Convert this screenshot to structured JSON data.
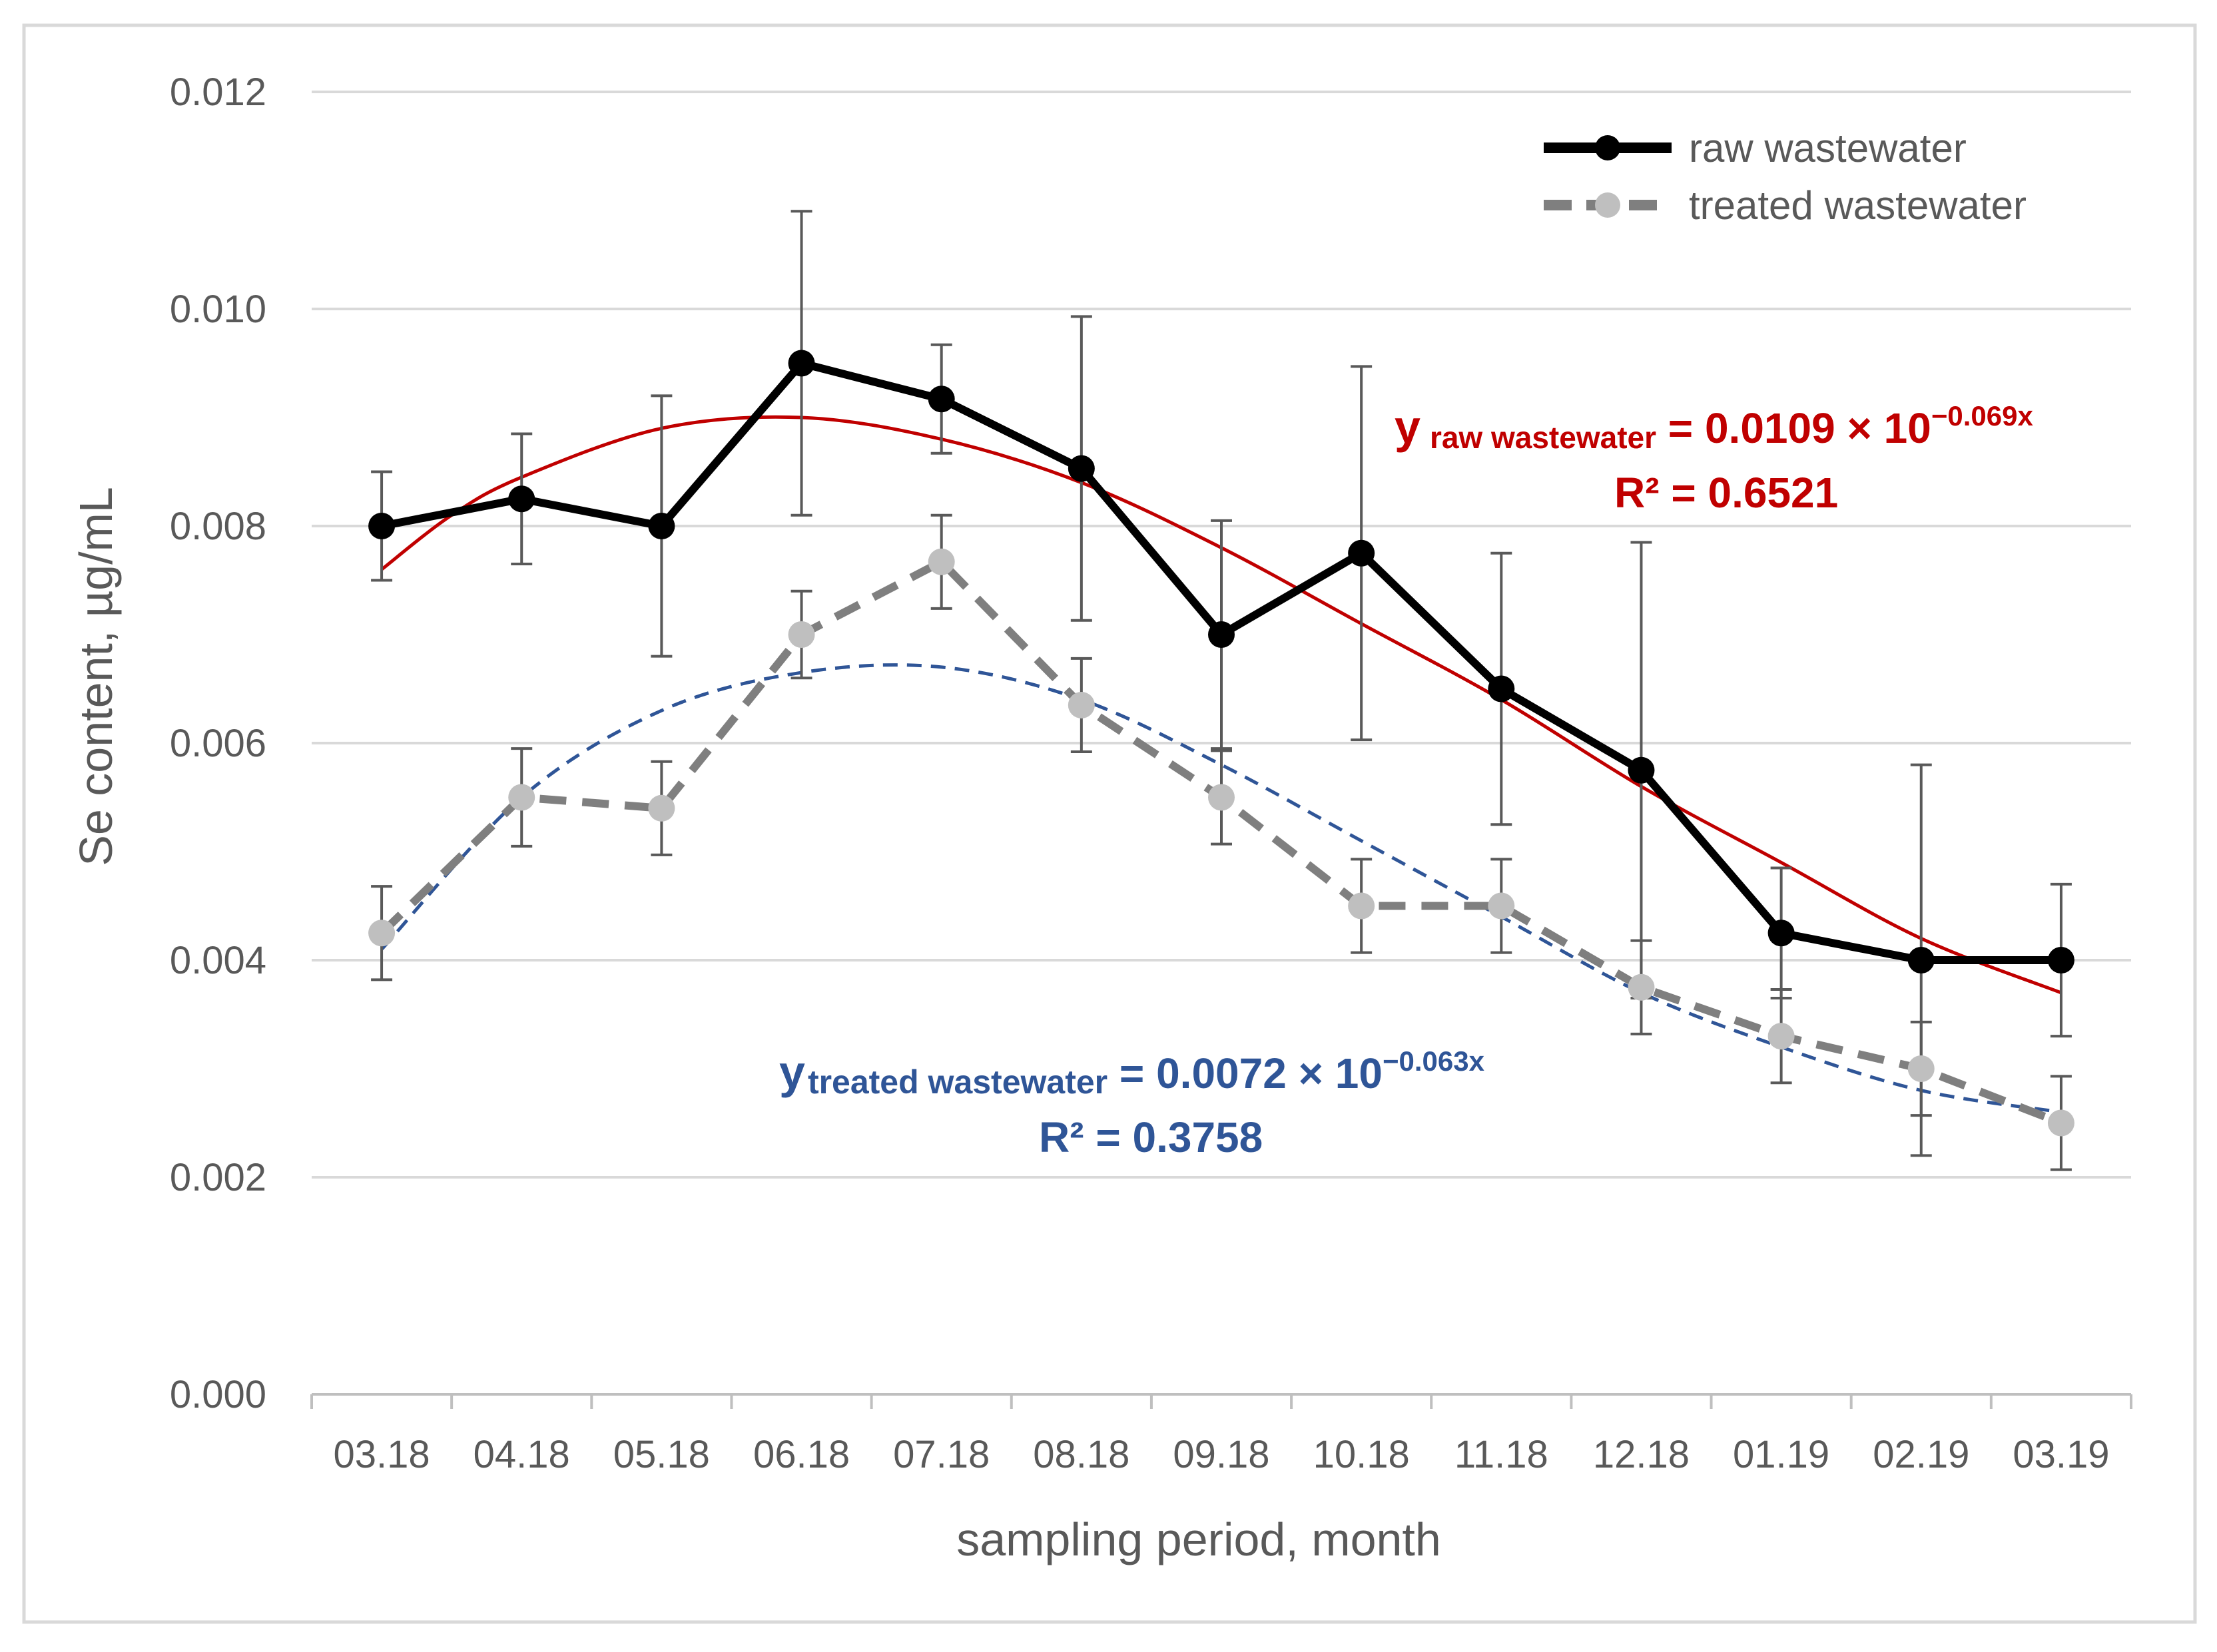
{
  "chart_data": {
    "type": "line",
    "title": "",
    "xlabel": "sampling period, month",
    "ylabel": "Se content, µg/mL",
    "ylim": [
      0.0,
      0.012
    ],
    "yticks": [
      "0.000",
      "0.002",
      "0.004",
      "0.006",
      "0.008",
      "0.010",
      "0.012"
    ],
    "categories": [
      "03.18",
      "04.18",
      "05.18",
      "06.18",
      "07.18",
      "08.18",
      "09.18",
      "10.18",
      "11.18",
      "12.18",
      "01.19",
      "02.19",
      "03.19"
    ],
    "grid": true,
    "legend_position": "top-right",
    "series": [
      {
        "name": "raw wastewater",
        "style": "solid",
        "color": "#000000",
        "values": [
          0.008,
          0.00825,
          0.008,
          0.0095,
          0.00917,
          0.00853,
          0.007,
          0.00775,
          0.0065,
          0.00575,
          0.00425,
          0.004,
          0.004
        ],
        "error": [
          0.0005,
          0.0006,
          0.0012,
          0.0014,
          0.0005,
          0.0014,
          0.00105,
          0.00172,
          0.00125,
          0.0021,
          0.0006,
          0.0018,
          0.0007
        ],
        "trend": {
          "color": "#c00000",
          "points": [
            [
              0,
              0.0076
            ],
            [
              0.5,
              0.0081
            ],
            [
              1,
              0.00845
            ],
            [
              2,
              0.0089
            ],
            [
              3,
              0.009
            ],
            [
              4,
              0.0088
            ],
            [
              5,
              0.0084
            ],
            [
              6,
              0.0078
            ],
            [
              7,
              0.0071
            ],
            [
              8,
              0.0064
            ],
            [
              9,
              0.0056
            ],
            [
              10,
              0.0049
            ],
            [
              11,
              0.0042
            ],
            [
              12,
              0.0037
            ]
          ]
        }
      },
      {
        "name": "treated wastewater",
        "style": "dashed",
        "color": "#7f7f7f",
        "marker_color": "#bfbfbf",
        "values": [
          0.00425,
          0.0055,
          0.0054,
          0.007,
          0.00767,
          0.00635,
          0.0055,
          0.0045,
          0.0045,
          0.00375,
          0.0033,
          0.003,
          0.0025
        ],
        "error": [
          0.00043,
          0.00045,
          0.00043,
          0.0004,
          0.00043,
          0.00043,
          0.00043,
          0.00043,
          0.00043,
          0.00043,
          0.00043,
          0.00043,
          0.00043
        ],
        "trend": {
          "color": "#2f5597",
          "points": [
            [
              0,
              0.0041
            ],
            [
              1,
              0.0055
            ],
            [
              2,
              0.0063
            ],
            [
              3,
              0.00665
            ],
            [
              4,
              0.0067
            ],
            [
              5,
              0.0064
            ],
            [
              6,
              0.0058
            ],
            [
              7,
              0.0051
            ],
            [
              8,
              0.0044
            ],
            [
              9,
              0.0037
            ],
            [
              10,
              0.0032
            ],
            [
              11,
              0.0028
            ],
            [
              12,
              0.0026
            ]
          ]
        }
      }
    ],
    "annotations": {
      "raw": {
        "y": "y",
        "y_sub": "raw wastewater",
        "rhs": " = 0.0109 × 10",
        "exp": "−0.069x",
        "r2": "R² = 0.6521",
        "color": "#c00000"
      },
      "treated": {
        "y": "y",
        "y_sub": "treated wastewater",
        "rhs": " = 0.0072 × 10",
        "exp": "−0.063x",
        "r2": "R² = 0.3758",
        "color": "#2f5597"
      }
    }
  }
}
